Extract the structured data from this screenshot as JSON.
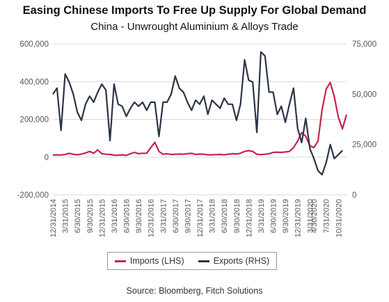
{
  "chart_data": {
    "type": "line",
    "title": "Easing Chinese Imports To Free Up Supply For Global Demand",
    "subtitle": "China - Unwrought Aluminium & Alloys Trade",
    "source": "Source: Bloomberg, Fitch Solutions",
    "x_tick_labels": [
      "12/31/2014",
      "3/31/2015",
      "6/30/2015",
      "9/30/2015",
      "12/31/2015",
      "3/31/2016",
      "6/30/2016",
      "9/30/2016",
      "12/31/2016",
      "3/31/2017",
      "6/30/2017",
      "9/30/2017",
      "12/31/2017",
      "3/31/2018",
      "6/30/2018",
      "9/30/2018",
      "12/31/2018",
      "3/31/2019",
      "6/30/2019",
      "9/30/2019",
      "12/31/2019",
      "3/31/2020",
      "4/30/2020",
      "7/31/2020",
      "10/31/2020"
    ],
    "x_tick_months": [
      0,
      3,
      6,
      9,
      12,
      15,
      18,
      21,
      24,
      27,
      30,
      33,
      36,
      39,
      42,
      45,
      48,
      51,
      54,
      57,
      60,
      63,
      64,
      67,
      70
    ],
    "left_axis": {
      "ylim": [
        -200000,
        600000
      ],
      "ticks": [
        -200000,
        0,
        200000,
        400000,
        600000
      ],
      "tick_labels": [
        "-200,000",
        "0",
        "200,000",
        "400,000",
        "600,000"
      ]
    },
    "right_axis": {
      "ylim": [
        0,
        75000
      ],
      "ticks": [
        0,
        25000,
        50000,
        75000
      ],
      "tick_labels": [
        "0",
        "25,000",
        "50,000",
        "75,000"
      ]
    },
    "grid": true,
    "legend_position": "bottom",
    "series": [
      {
        "name": "Imports (LHS)",
        "axis": "left",
        "color": "#c8234a",
        "values": [
          10000,
          12000,
          11000,
          14000,
          20000,
          15000,
          12000,
          16000,
          22000,
          30000,
          20000,
          38000,
          18000,
          15000,
          14000,
          10000,
          10000,
          12000,
          9000,
          18000,
          25000,
          18000,
          20000,
          20000,
          50000,
          78000,
          30000,
          15000,
          18000,
          14000,
          15000,
          16000,
          15000,
          18000,
          20000,
          14000,
          16000,
          15000,
          12000,
          12000,
          13000,
          14000,
          12000,
          15000,
          18000,
          16000,
          20000,
          30000,
          34000,
          30000,
          15000,
          13000,
          15000,
          18000,
          25000,
          26000,
          25000,
          27000,
          30000,
          50000,
          85000,
          130000,
          110000,
          60000,
          50000,
          85000,
          250000,
          360000,
          395000,
          320000,
          210000,
          150000,
          225000
        ]
      },
      {
        "name": "Exports (RHS)",
        "axis": "right",
        "color": "#2b3446",
        "values": [
          50000,
          53000,
          32000,
          60000,
          56000,
          50000,
          41000,
          37000,
          45000,
          49000,
          46000,
          51000,
          55000,
          52000,
          27000,
          55000,
          45000,
          44000,
          39000,
          43000,
          46000,
          44000,
          46000,
          42000,
          46000,
          46000,
          29000,
          46000,
          46000,
          50000,
          59000,
          53000,
          51000,
          46000,
          42000,
          47000,
          45000,
          49000,
          40000,
          47000,
          45000,
          43000,
          48000,
          45000,
          45000,
          37000,
          45000,
          67000,
          57000,
          56000,
          31000,
          71000,
          69000,
          51000,
          51000,
          40000,
          44000,
          36000,
          45000,
          53000,
          33000,
          26000,
          38000,
          23000,
          18000,
          12000,
          10000,
          16000,
          25000,
          18000,
          20000,
          22000
        ]
      }
    ]
  },
  "legend": {
    "imports_label": "Imports (LHS)",
    "exports_label": "Exports (RHS)"
  }
}
